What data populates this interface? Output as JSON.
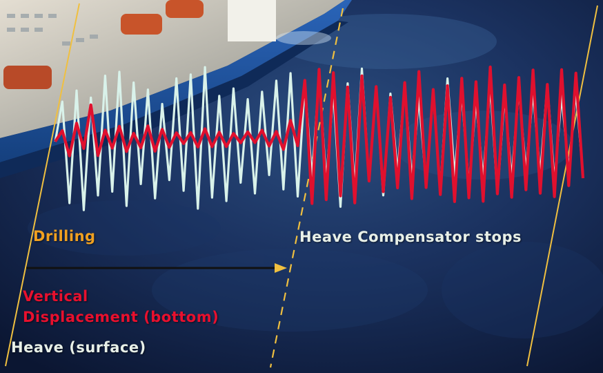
{
  "labels": {
    "drilling": "Drilling",
    "heave_compensator_stops": "Heave Compensator stops",
    "vertical_displacement_line1": "Vertical",
    "vertical_displacement_line2": "Displacement (bottom)",
    "heave_surface": "Heave (surface)"
  },
  "colors": {
    "ocean_dark": "#0e1c3a",
    "ocean_mid": "#1f3a66",
    "heave_trace": "#d9f2ea",
    "displacement_trace": "#e0102e",
    "drilling_label": "#f0a020",
    "vertical_label": "#e8102e",
    "heave_label": "#e8f0e8",
    "stops_label": "#e8f0e8",
    "guide_line": "#f0c040",
    "drilling_arrow": "#111111",
    "ship_hull": "#1e56a8",
    "ship_deck": "#d9d3c8",
    "lifeboat": "#c8542a"
  },
  "chart_data": {
    "type": "line",
    "title": "",
    "xlabel": "",
    "ylabel": "",
    "annotations": [
      "Drilling",
      "Heave Compensator stops"
    ],
    "compensator_stop_fraction": 0.47,
    "series": [
      {
        "name": "Heave (surface)",
        "color": "#d9f2ea",
        "values": [
          0,
          0.55,
          -0.85,
          0.7,
          -0.95,
          0.6,
          -0.75,
          0.9,
          -0.7,
          0.95,
          -0.9,
          0.8,
          -0.6,
          0.7,
          -0.8,
          0.5,
          -0.55,
          0.85,
          -0.7,
          0.9,
          -0.95,
          1.0,
          -0.8,
          0.6,
          -0.85,
          0.7,
          -0.6,
          0.55,
          -0.75,
          0.65,
          -0.5,
          0.8,
          -0.7,
          0.9,
          -0.8,
          0.75,
          -0.55,
          0.85,
          -0.6,
          0.65,
          -0.95,
          0.75,
          -0.7,
          0.95,
          -0.6,
          0.7,
          -0.8,
          0.6,
          -0.5,
          0.7,
          -0.6,
          0.55,
          -0.65,
          0.6,
          -0.75,
          0.8,
          -0.55,
          0.6,
          -0.7,
          0.5,
          -0.6,
          0.7,
          -0.8,
          0.55,
          -0.6,
          0.65,
          -0.5,
          0.6,
          -0.55,
          0.7,
          -0.65,
          0.55,
          -0.5,
          0.6,
          -0.55
        ]
      },
      {
        "name": "Vertical Displacement (bottom)",
        "color": "#e0102e",
        "values": [
          0,
          0.15,
          -0.2,
          0.25,
          -0.1,
          0.5,
          -0.2,
          0.15,
          -0.1,
          0.2,
          -0.15,
          0.1,
          -0.1,
          0.2,
          -0.15,
          0.15,
          -0.1,
          0.1,
          -0.05,
          0.1,
          -0.1,
          0.15,
          -0.1,
          0.1,
          -0.1,
          0.08,
          -0.05,
          0.1,
          -0.05,
          0.12,
          -0.1,
          0.1,
          -0.15,
          0.25,
          -0.1,
          0.8,
          -0.9,
          0.95,
          -0.85,
          0.9,
          -0.8,
          0.7,
          -0.9,
          0.85,
          -0.6,
          0.7,
          -0.75,
          0.55,
          -0.7,
          0.75,
          -0.85,
          0.9,
          -0.7,
          0.65,
          -0.8,
          0.7,
          -0.9,
          0.8,
          -0.85,
          0.75,
          -0.9,
          0.95,
          -0.8,
          0.7,
          -0.85,
          0.8,
          -0.75,
          0.9,
          -0.8,
          0.7,
          -0.85,
          0.9,
          -0.7,
          0.85,
          -0.6
        ]
      }
    ]
  }
}
